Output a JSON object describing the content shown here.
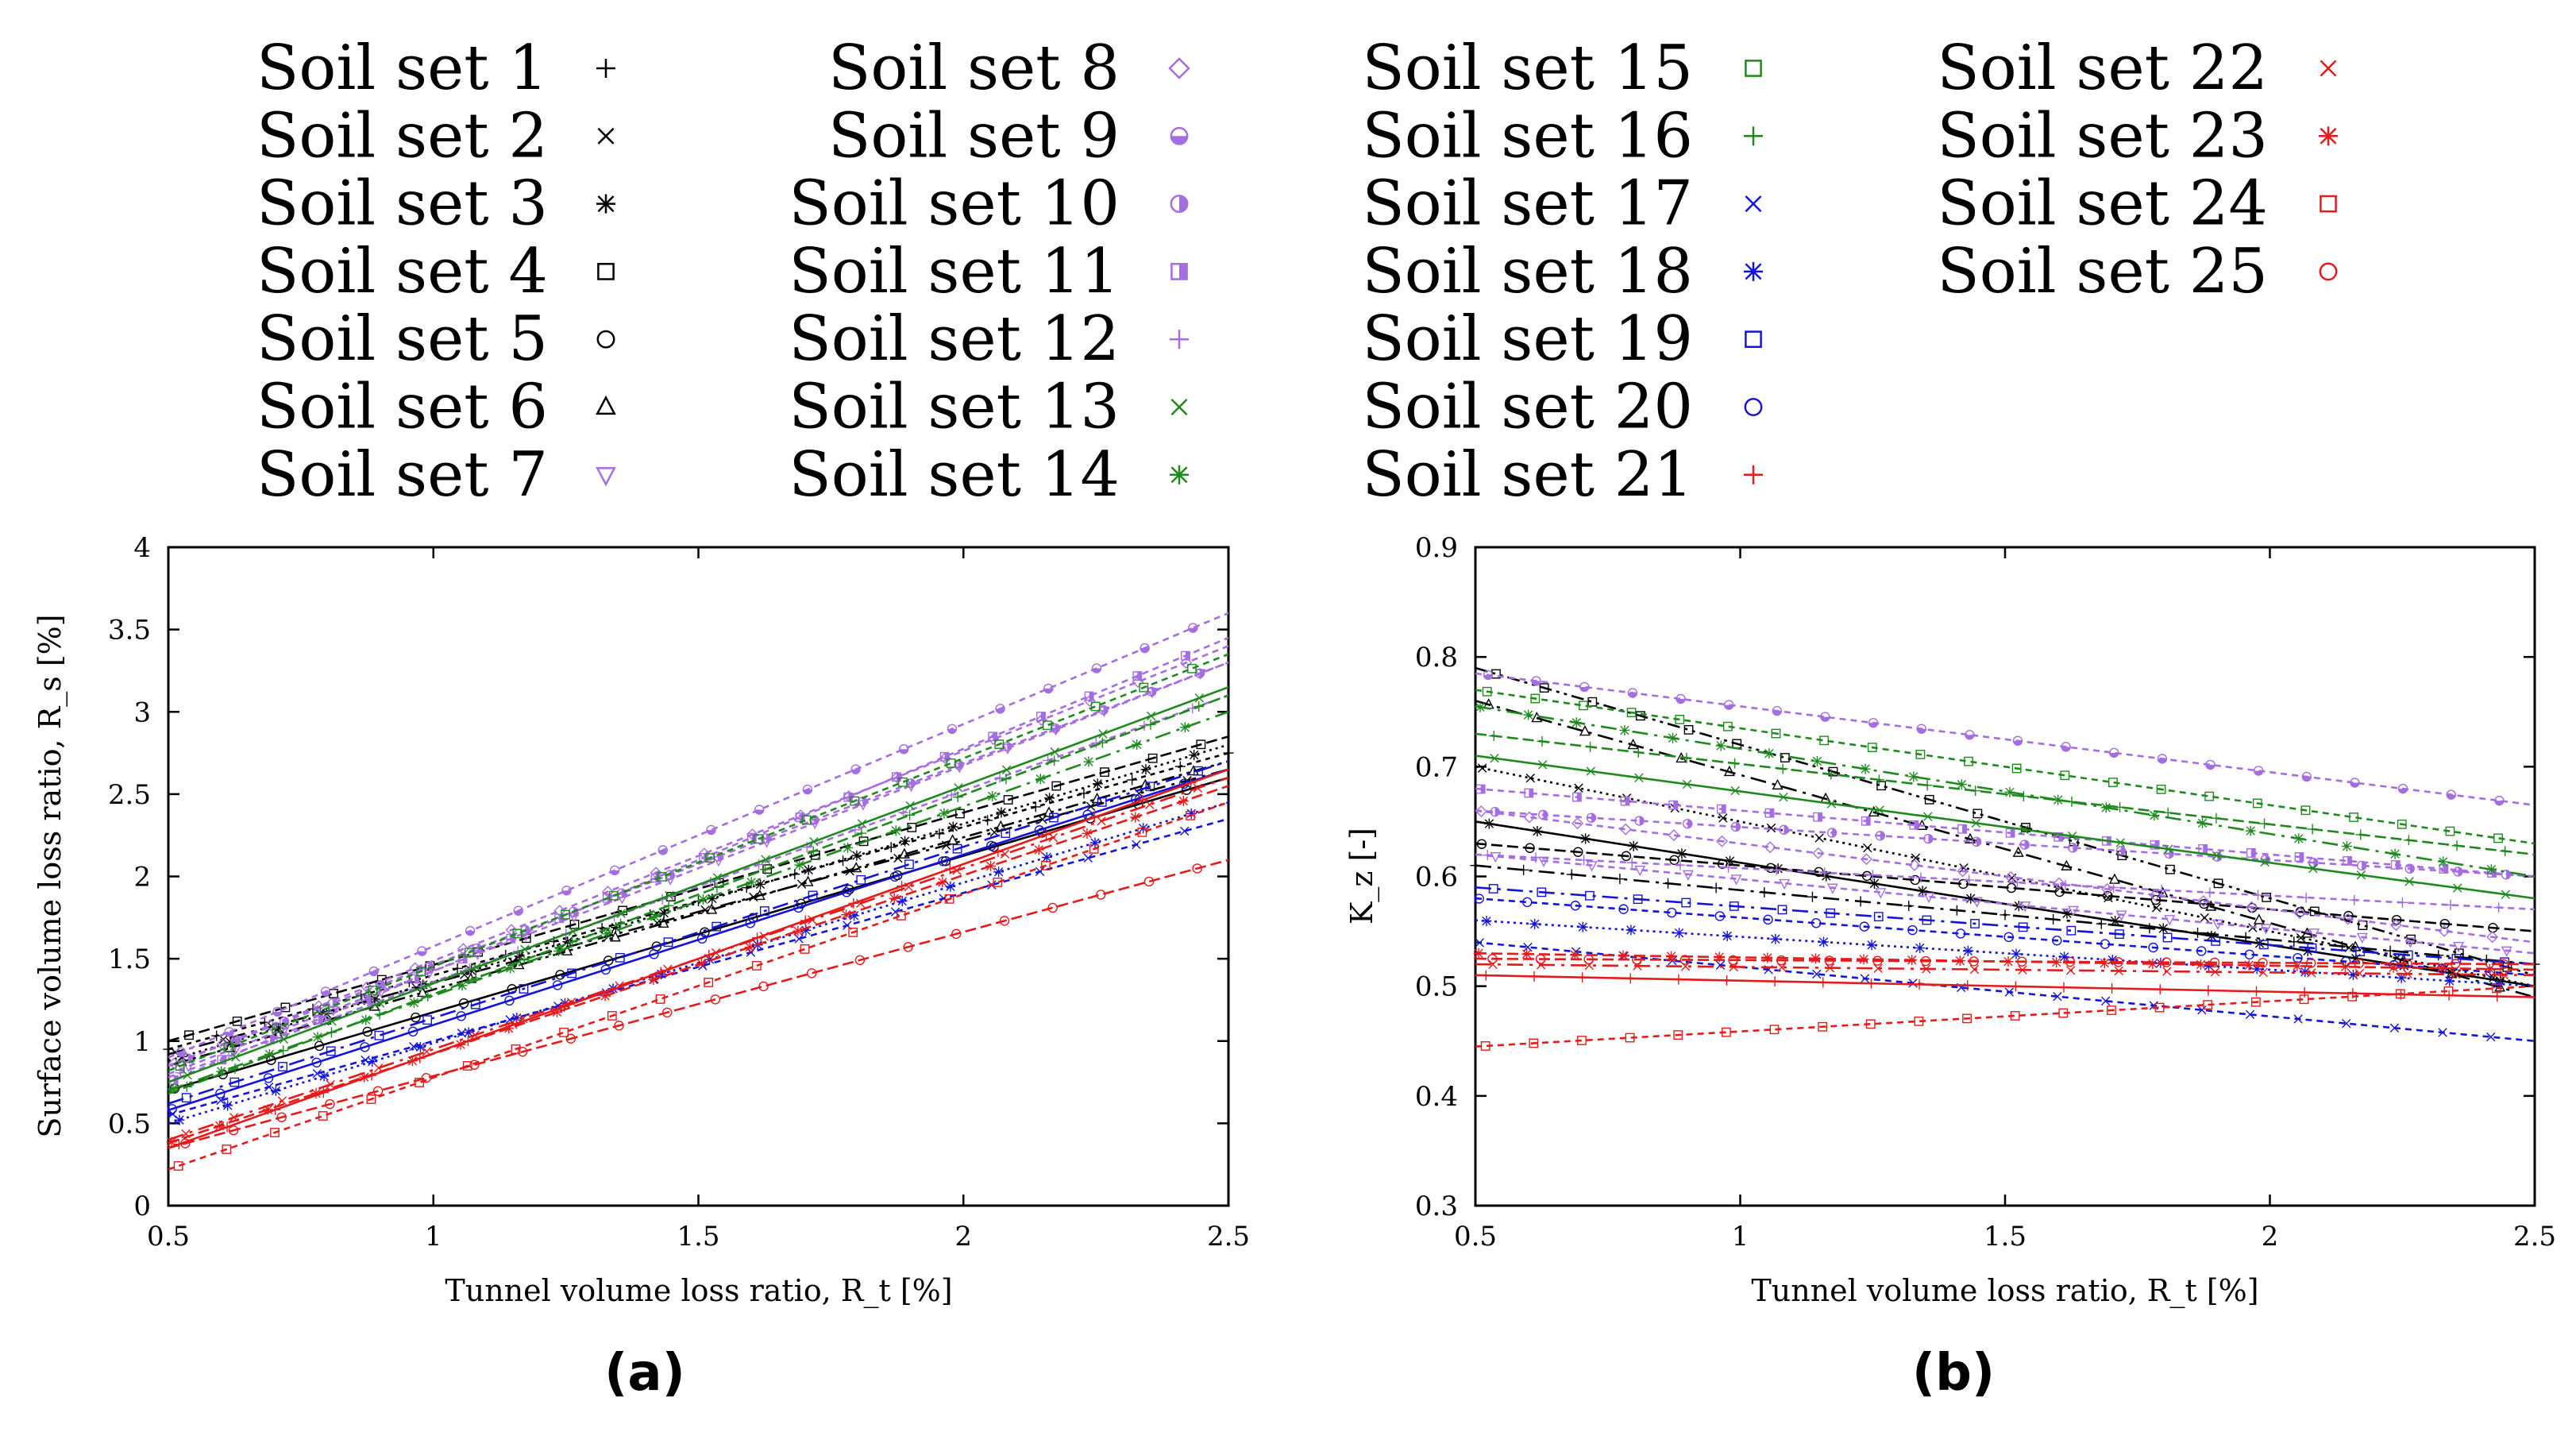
{
  "colors": {
    "black": "#000000",
    "purple": "#a56de2",
    "green": "#1e8a1e",
    "blue": "#1414d8",
    "red": "#e61a1a"
  },
  "legend": {
    "entries": [
      {
        "label": "Soil set 1",
        "marker": "plus",
        "color": "black"
      },
      {
        "label": "Soil set 2",
        "marker": "cross",
        "color": "black"
      },
      {
        "label": "Soil set 3",
        "marker": "asterisk",
        "color": "black"
      },
      {
        "label": "Soil set 4",
        "marker": "square",
        "color": "black"
      },
      {
        "label": "Soil set 5",
        "marker": "circle",
        "color": "black"
      },
      {
        "label": "Soil set 6",
        "marker": "triangle",
        "color": "black"
      },
      {
        "label": "Soil set 7",
        "marker": "triangle-down",
        "color": "purple"
      },
      {
        "label": "Soil set 8",
        "marker": "diamond",
        "color": "purple"
      },
      {
        "label": "Soil set 9",
        "marker": "circle-half-bottom",
        "color": "purple"
      },
      {
        "label": "Soil set 10",
        "marker": "circle-half-right",
        "color": "purple"
      },
      {
        "label": "Soil set 11",
        "marker": "square-half",
        "color": "purple"
      },
      {
        "label": "Soil set 12",
        "marker": "plus",
        "color": "purple"
      },
      {
        "label": "Soil set 13",
        "marker": "cross",
        "color": "green"
      },
      {
        "label": "Soil set 14",
        "marker": "asterisk",
        "color": "green"
      },
      {
        "label": "Soil set 15",
        "marker": "square",
        "color": "green"
      },
      {
        "label": "Soil set 16",
        "marker": "plus",
        "color": "green"
      },
      {
        "label": "Soil set 17",
        "marker": "cross",
        "color": "blue"
      },
      {
        "label": "Soil set 18",
        "marker": "asterisk",
        "color": "blue"
      },
      {
        "label": "Soil set 19",
        "marker": "square",
        "color": "blue"
      },
      {
        "label": "Soil set 20",
        "marker": "circle",
        "color": "blue"
      },
      {
        "label": "Soil set 21",
        "marker": "plus",
        "color": "red"
      },
      {
        "label": "Soil set 22",
        "marker": "cross",
        "color": "red"
      },
      {
        "label": "Soil set 23",
        "marker": "asterisk",
        "color": "red"
      },
      {
        "label": "Soil set 24",
        "marker": "square",
        "color": "red"
      },
      {
        "label": "Soil set 25",
        "marker": "circle",
        "color": "red"
      }
    ]
  },
  "chart_data": [
    {
      "type": "scatter",
      "panel_label": "(a)",
      "xlabel": "Tunnel volume loss ratio, R_t [%]",
      "ylabel": "Surface volume loss ratio, R_s [%]",
      "xlim": [
        0.5,
        2.5
      ],
      "ylim": [
        0,
        4
      ],
      "xticks": [
        "0.5",
        "1",
        "1.5",
        "2",
        "2.5"
      ],
      "yticks": [
        "0",
        "0.5",
        "1",
        "1.5",
        "2",
        "2.5",
        "3",
        "3.5",
        "4"
      ],
      "grid": false,
      "series": [
        {
          "name": "Soil set 1",
          "color": "black",
          "marker": "plus",
          "dash": "6,6",
          "y0": 0.95,
          "y1": 2.75
        },
        {
          "name": "Soil set 2",
          "color": "black",
          "marker": "cross",
          "dash": "20,8,4,8",
          "y0": 0.92,
          "y1": 2.65
        },
        {
          "name": "Soil set 3",
          "color": "black",
          "marker": "asterisk",
          "dash": "3,5",
          "y0": 0.88,
          "y1": 2.8
        },
        {
          "name": "Soil set 4",
          "color": "black",
          "marker": "square",
          "dash": "14,6",
          "y0": 1.0,
          "y1": 2.85
        },
        {
          "name": "Soil set 5",
          "color": "black",
          "marker": "circle",
          "dash": "",
          "y0": 0.7,
          "y1": 2.6
        },
        {
          "name": "Soil set 6",
          "color": "black",
          "marker": "triangle",
          "dash": "16,6,4,6,4,6",
          "y0": 0.85,
          "y1": 2.7
        },
        {
          "name": "Soil set 7",
          "color": "purple",
          "marker": "triangle-down",
          "dash": "8,6",
          "y0": 0.8,
          "y1": 3.3
        },
        {
          "name": "Soil set 8",
          "color": "purple",
          "marker": "diamond",
          "dash": "8,6",
          "y0": 0.85,
          "y1": 3.4
        },
        {
          "name": "Soil set 9",
          "color": "purple",
          "marker": "circle-half-bottom",
          "dash": "8,6",
          "y0": 0.9,
          "y1": 3.6
        },
        {
          "name": "Soil set 10",
          "color": "purple",
          "marker": "circle-half-right",
          "dash": "8,6",
          "y0": 0.85,
          "y1": 3.3
        },
        {
          "name": "Soil set 11",
          "color": "purple",
          "marker": "square-half",
          "dash": "8,6",
          "y0": 0.75,
          "y1": 3.45
        },
        {
          "name": "Soil set 12",
          "color": "purple",
          "marker": "plus",
          "dash": "8,6",
          "y0": 0.78,
          "y1": 3.1
        },
        {
          "name": "Soil set 13",
          "color": "green",
          "marker": "cross",
          "dash": "",
          "y0": 0.75,
          "y1": 3.15
        },
        {
          "name": "Soil set 14",
          "color": "green",
          "marker": "asterisk",
          "dash": "20,8,4,8",
          "y0": 0.7,
          "y1": 3.0
        },
        {
          "name": "Soil set 15",
          "color": "green",
          "marker": "square",
          "dash": "8,6",
          "y0": 0.82,
          "y1": 3.35
        },
        {
          "name": "Soil set 16",
          "color": "green",
          "marker": "plus",
          "dash": "14,6",
          "y0": 0.68,
          "y1": 3.1
        },
        {
          "name": "Soil set 17",
          "color": "blue",
          "marker": "cross",
          "dash": "8,6",
          "y0": 0.55,
          "y1": 2.35
        },
        {
          "name": "Soil set 18",
          "color": "blue",
          "marker": "asterisk",
          "dash": "3,5",
          "y0": 0.5,
          "y1": 2.45
        },
        {
          "name": "Soil set 19",
          "color": "blue",
          "marker": "square",
          "dash": "20,8,4,8",
          "y0": 0.62,
          "y1": 2.7
        },
        {
          "name": "Soil set 20",
          "color": "blue",
          "marker": "circle",
          "dash": "",
          "y0": 0.58,
          "y1": 2.65
        },
        {
          "name": "Soil set 21",
          "color": "red",
          "marker": "plus",
          "dash": "",
          "y0": 0.35,
          "y1": 2.65
        },
        {
          "name": "Soil set 22",
          "color": "red",
          "marker": "cross",
          "dash": "20,8,4,8",
          "y0": 0.4,
          "y1": 2.6
        },
        {
          "name": "Soil set 23",
          "color": "red",
          "marker": "asterisk",
          "dash": "14,6",
          "y0": 0.38,
          "y1": 2.55
        },
        {
          "name": "Soil set 24",
          "color": "red",
          "marker": "square",
          "dash": "8,6",
          "y0": 0.22,
          "y1": 2.45
        },
        {
          "name": "Soil set 25",
          "color": "red",
          "marker": "circle",
          "dash": "14,6",
          "y0": 0.35,
          "y1": 2.1
        }
      ]
    },
    {
      "type": "scatter",
      "panel_label": "(b)",
      "xlabel": "Tunnel volume loss ratio, R_t [%]",
      "ylabel": "K_z [-]",
      "xlim": [
        0.5,
        2.5
      ],
      "ylim": [
        0.3,
        0.9
      ],
      "xticks": [
        "0.5",
        "1",
        "1.5",
        "2",
        "2.5"
      ],
      "yticks": [
        "0.3",
        "0.4",
        "0.5",
        "0.6",
        "0.7",
        "0.8",
        "0.9"
      ],
      "grid": false,
      "series": [
        {
          "name": "Soil set 1",
          "color": "black",
          "marker": "plus",
          "dash": "20,8,4,8",
          "y0": 0.61,
          "y1": 0.52
        },
        {
          "name": "Soil set 2",
          "color": "black",
          "marker": "cross",
          "dash": "3,5",
          "y0": 0.7,
          "y1": 0.5
        },
        {
          "name": "Soil set 3",
          "color": "black",
          "marker": "asterisk",
          "dash": "",
          "y0": 0.65,
          "y1": 0.5
        },
        {
          "name": "Soil set 4",
          "color": "black",
          "marker": "square",
          "dash": "16,6,4,6,4,6",
          "y0": 0.79,
          "y1": 0.51
        },
        {
          "name": "Soil set 5",
          "color": "black",
          "marker": "circle",
          "dash": "14,6",
          "y0": 0.63,
          "y1": 0.55
        },
        {
          "name": "Soil set 6",
          "color": "black",
          "marker": "triangle",
          "dash": "20,8,4,8",
          "y0": 0.76,
          "y1": 0.49
        },
        {
          "name": "Soil set 7",
          "color": "purple",
          "marker": "triangle-down",
          "dash": "8,6",
          "y0": 0.62,
          "y1": 0.53
        },
        {
          "name": "Soil set 8",
          "color": "purple",
          "marker": "diamond",
          "dash": "8,6",
          "y0": 0.66,
          "y1": 0.54
        },
        {
          "name": "Soil set 9",
          "color": "purple",
          "marker": "circle-half-bottom",
          "dash": "8,6",
          "y0": 0.785,
          "y1": 0.665
        },
        {
          "name": "Soil set 10",
          "color": "purple",
          "marker": "circle-half-right",
          "dash": "8,6",
          "y0": 0.66,
          "y1": 0.6
        },
        {
          "name": "Soil set 11",
          "color": "purple",
          "marker": "square-half",
          "dash": "8,6",
          "y0": 0.68,
          "y1": 0.6
        },
        {
          "name": "Soil set 12",
          "color": "purple",
          "marker": "plus",
          "dash": "8,6",
          "y0": 0.62,
          "y1": 0.57
        },
        {
          "name": "Soil set 13",
          "color": "green",
          "marker": "cross",
          "dash": "",
          "y0": 0.71,
          "y1": 0.58
        },
        {
          "name": "Soil set 14",
          "color": "green",
          "marker": "asterisk",
          "dash": "20,8,4,8",
          "y0": 0.755,
          "y1": 0.6
        },
        {
          "name": "Soil set 15",
          "color": "green",
          "marker": "square",
          "dash": "8,6",
          "y0": 0.77,
          "y1": 0.63
        },
        {
          "name": "Soil set 16",
          "color": "green",
          "marker": "plus",
          "dash": "14,6",
          "y0": 0.73,
          "y1": 0.62
        },
        {
          "name": "Soil set 17",
          "color": "blue",
          "marker": "cross",
          "dash": "8,6",
          "y0": 0.54,
          "y1": 0.45
        },
        {
          "name": "Soil set 18",
          "color": "blue",
          "marker": "asterisk",
          "dash": "3,5",
          "y0": 0.56,
          "y1": 0.5
        },
        {
          "name": "Soil set 19",
          "color": "blue",
          "marker": "square",
          "dash": "20,8,4,8",
          "y0": 0.59,
          "y1": 0.52
        },
        {
          "name": "Soil set 20",
          "color": "blue",
          "marker": "circle",
          "dash": "8,6",
          "y0": 0.58,
          "y1": 0.51
        },
        {
          "name": "Soil set 21",
          "color": "red",
          "marker": "plus",
          "dash": "",
          "y0": 0.51,
          "y1": 0.49
        },
        {
          "name": "Soil set 22",
          "color": "red",
          "marker": "cross",
          "dash": "20,8,4,8",
          "y0": 0.52,
          "y1": 0.51
        },
        {
          "name": "Soil set 23",
          "color": "red",
          "marker": "asterisk",
          "dash": "14,6",
          "y0": 0.53,
          "y1": 0.515
        },
        {
          "name": "Soil set 24",
          "color": "red",
          "marker": "square",
          "dash": "8,6",
          "y0": 0.445,
          "y1": 0.5
        },
        {
          "name": "Soil set 25",
          "color": "red",
          "marker": "circle",
          "dash": "14,6",
          "y0": 0.525,
          "y1": 0.52
        }
      ]
    }
  ]
}
